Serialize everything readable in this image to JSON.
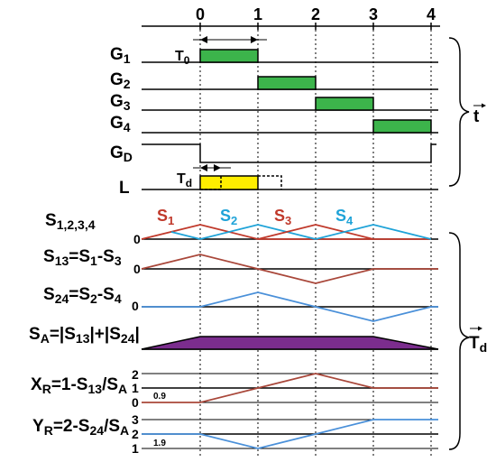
{
  "time_ticks": [
    "0",
    "1",
    "2",
    "3",
    "4"
  ],
  "gate_rows": [
    {
      "name": "G",
      "sub": "1"
    },
    {
      "name": "G",
      "sub": "2"
    },
    {
      "name": "G",
      "sub": "3"
    },
    {
      "name": "G",
      "sub": "4"
    },
    {
      "name": "G",
      "sub": "D"
    }
  ],
  "L_label": "L",
  "T0": {
    "name": "T",
    "sub": "0"
  },
  "Td": {
    "name": "T",
    "sub": "d"
  },
  "brace_t": "t",
  "brace_Td": {
    "name": "T",
    "sub": "d"
  },
  "signals": {
    "S1234": {
      "name": "S",
      "sub": "1,2,3,4",
      "zero": "0"
    },
    "S1": {
      "name": "S",
      "sub": "1"
    },
    "S2": {
      "name": "S",
      "sub": "2"
    },
    "S3": {
      "name": "S",
      "sub": "3"
    },
    "S4": {
      "name": "S",
      "sub": "4"
    },
    "S13": {
      "p1": "S",
      "s1": "13",
      "p2": "=S",
      "s2": "1",
      "p3": "-S",
      "s3": "3",
      "zero": "0"
    },
    "S24": {
      "p1": "S",
      "s1": "24",
      "p2": "=S",
      "s2": "2",
      "p3": "-S",
      "s3": "4",
      "zero": "0"
    },
    "SA": {
      "p1": "S",
      "s1": "A",
      "p2": "=|S",
      "s2": "13",
      "p3": "|+|S",
      "s3": "24",
      "p4": "|"
    },
    "XR": {
      "p1": "X",
      "s1": "R",
      "p2": "=1-S",
      "s2": "13",
      "p3": "/S",
      "s3": "A",
      "ticks": [
        "2",
        "1",
        "0"
      ],
      "note": "0.9"
    },
    "YR": {
      "p1": "Y",
      "s1": "R",
      "p2": "=2-S",
      "s2": "24",
      "p3": "/S",
      "s3": "A",
      "ticks": [
        "3",
        "2",
        "1"
      ],
      "note": "1.9"
    }
  },
  "colors": {
    "green": "#3cb44b",
    "yellow": "#ffee00",
    "red": "#c0392b",
    "blue": "#1fa3d8",
    "brown": "#a9473a",
    "purple": "#7b2d8e",
    "line_blue": "#4a90d9"
  }
}
